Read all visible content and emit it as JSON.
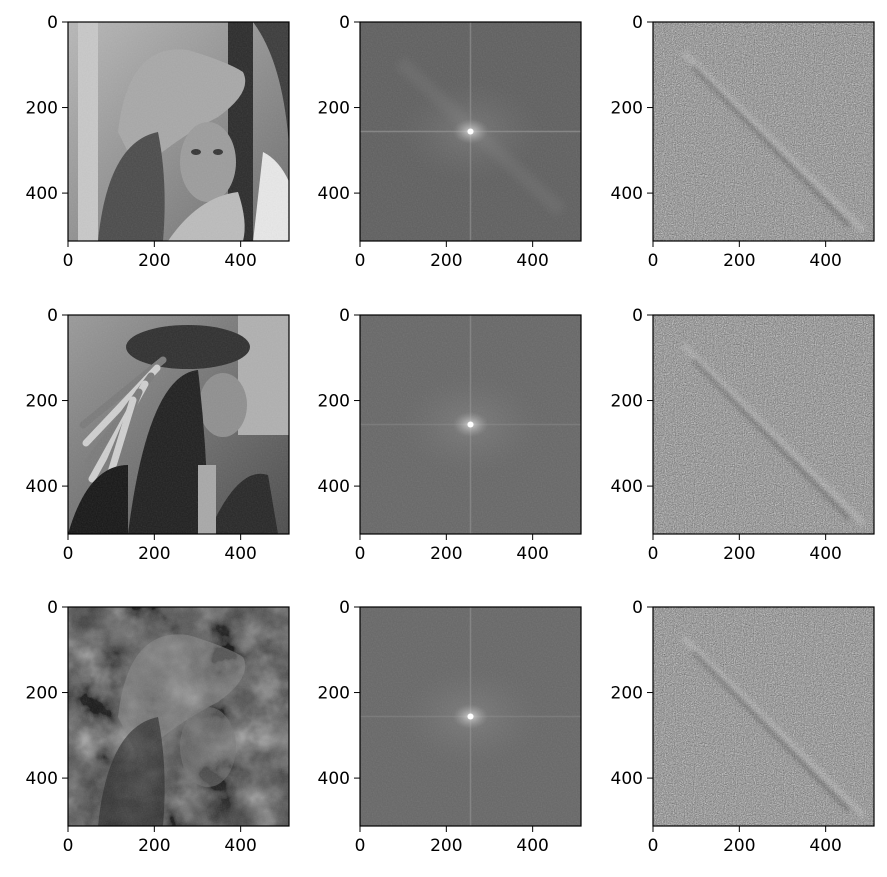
{
  "chart_data": {
    "type": "image-grid",
    "rows": 3,
    "cols": 3,
    "panels": [
      {
        "id": "original-1",
        "row": 0,
        "col": 0,
        "kind": "photo",
        "subject": "woman-with-hat",
        "xlim": [
          0,
          512
        ],
        "ylim": [
          512,
          0
        ],
        "xticks": [
          0,
          200,
          400
        ],
        "yticks": [
          0,
          200,
          400
        ]
      },
      {
        "id": "spectrum-1",
        "row": 0,
        "col": 1,
        "kind": "magnitude-spectrum",
        "xlim": [
          0,
          512
        ],
        "ylim": [
          512,
          0
        ],
        "xticks": [
          0,
          200,
          400
        ],
        "yticks": [
          0,
          200,
          400
        ]
      },
      {
        "id": "phase-1",
        "row": 0,
        "col": 2,
        "kind": "phase-noise",
        "xlim": [
          0,
          512
        ],
        "ylim": [
          512,
          0
        ],
        "xticks": [
          0,
          200,
          400
        ],
        "yticks": [
          0,
          200,
          400
        ]
      },
      {
        "id": "original-2",
        "row": 1,
        "col": 0,
        "kind": "photo",
        "subject": "man-with-feathered-hat",
        "xlim": [
          0,
          512
        ],
        "ylim": [
          512,
          0
        ],
        "xticks": [
          0,
          200,
          400
        ],
        "yticks": [
          0,
          200,
          400
        ]
      },
      {
        "id": "spectrum-2",
        "row": 1,
        "col": 1,
        "kind": "magnitude-spectrum",
        "xlim": [
          0,
          512
        ],
        "ylim": [
          512,
          0
        ],
        "xticks": [
          0,
          200,
          400
        ],
        "yticks": [
          0,
          200,
          400
        ]
      },
      {
        "id": "phase-2",
        "row": 1,
        "col": 2,
        "kind": "phase-noise",
        "xlim": [
          0,
          512
        ],
        "ylim": [
          512,
          0
        ],
        "xticks": [
          0,
          200,
          400
        ],
        "yticks": [
          0,
          200,
          400
        ]
      },
      {
        "id": "reconstruction",
        "row": 2,
        "col": 0,
        "kind": "photo",
        "subject": "swapped-reconstruction",
        "xlim": [
          0,
          512
        ],
        "ylim": [
          512,
          0
        ],
        "xticks": [
          0,
          200,
          400
        ],
        "yticks": [
          0,
          200,
          400
        ]
      },
      {
        "id": "spectrum-3",
        "row": 2,
        "col": 1,
        "kind": "magnitude-spectrum",
        "xlim": [
          0,
          512
        ],
        "ylim": [
          512,
          0
        ],
        "xticks": [
          0,
          200,
          400
        ],
        "yticks": [
          0,
          200,
          400
        ]
      },
      {
        "id": "phase-3",
        "row": 2,
        "col": 2,
        "kind": "phase-noise",
        "xlim": [
          0,
          512
        ],
        "ylim": [
          512,
          0
        ],
        "xticks": [
          0,
          200,
          400
        ],
        "yticks": [
          0,
          200,
          400
        ]
      }
    ],
    "colormap": "gray",
    "grid": false,
    "legend": "none"
  }
}
